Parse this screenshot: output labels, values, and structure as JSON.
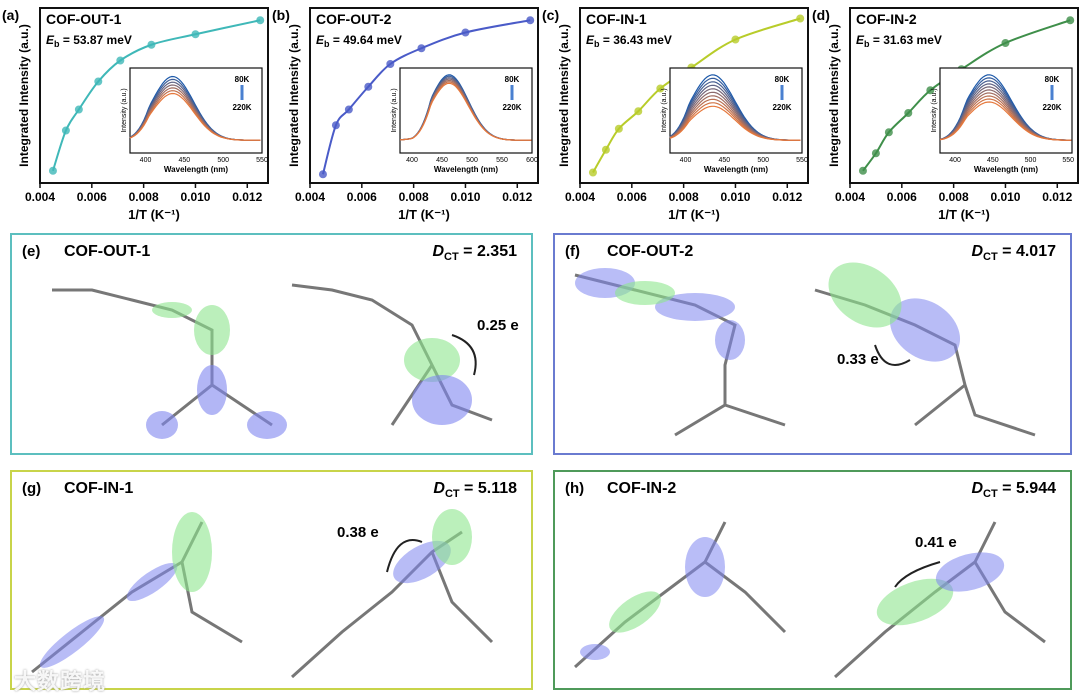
{
  "chart_data": [
    {
      "type": "line",
      "panel": "(a)",
      "title": "COF-OUT-1",
      "eb_label": "E",
      "eb_sub": "b",
      "eb_value": "= 53.87 meV",
      "color": "#3fb8b8",
      "xlabel": "1/T (K⁻¹)",
      "ylabel": "Integrated Intensity (a.u.)",
      "xlim": [
        0.004,
        0.0128
      ],
      "ylim": [
        0,
        1
      ],
      "xticks": [
        "0.004",
        "0.006",
        "0.008",
        "0.010",
        "0.012"
      ],
      "x": [
        0.0045,
        0.005,
        0.0055,
        0.00625,
        0.0071,
        0.0083,
        0.01,
        0.0125
      ],
      "y": [
        0.07,
        0.3,
        0.42,
        0.58,
        0.7,
        0.79,
        0.85,
        0.93
      ],
      "inset": {
        "xlabel": "Wavelength (nm)",
        "ylabel": "Intensity (a.u.)",
        "xticks": [
          "400",
          "450",
          "500",
          "550"
        ],
        "xlim": [
          380,
          550
        ],
        "peak": 435,
        "width": 38,
        "n": 7,
        "top": 0.9,
        "bottom": 0.7,
        "legend_top": "80K",
        "legend_bottom": "220K"
      }
    },
    {
      "type": "line",
      "panel": "(b)",
      "title": "COF-OUT-2",
      "eb_label": "E",
      "eb_sub": "b",
      "eb_value": "= 49.64 meV",
      "color": "#4a5bc8",
      "xlabel": "1/T (K⁻¹)",
      "ylabel": "Integrated Intensity (a.u.)",
      "xlim": [
        0.004,
        0.0128
      ],
      "ylim": [
        0,
        1
      ],
      "xticks": [
        "0.004",
        "0.006",
        "0.008",
        "0.010",
        "0.012"
      ],
      "x": [
        0.0045,
        0.005,
        0.0055,
        0.00625,
        0.0071,
        0.0083,
        0.01,
        0.0125
      ],
      "y": [
        0.05,
        0.33,
        0.42,
        0.55,
        0.68,
        0.77,
        0.86,
        0.93
      ],
      "inset": {
        "xlabel": "Wavelength (nm)",
        "ylabel": "Intensity (a.u.)",
        "xticks": [
          "400",
          "450",
          "500",
          "550",
          "600"
        ],
        "xlim": [
          380,
          600
        ],
        "peak": 462,
        "width": 45,
        "n": 7,
        "top": 0.92,
        "bottom": 0.82,
        "legend_top": "80K",
        "legend_bottom": "220K"
      }
    },
    {
      "type": "line",
      "panel": "(c)",
      "title": "COF-IN-1",
      "eb_label": "E",
      "eb_sub": "b",
      "eb_value": "= 36.43 meV",
      "color": "#b8cc2a",
      "xlabel": "1/T (K⁻¹)",
      "ylabel": "Integrated Intensity (a.u.)",
      "xlim": [
        0.004,
        0.0128
      ],
      "ylim": [
        0,
        1
      ],
      "xticks": [
        "0.004",
        "0.006",
        "0.008",
        "0.010",
        "0.012"
      ],
      "x": [
        0.0045,
        0.005,
        0.0055,
        0.00625,
        0.0071,
        0.0083,
        0.01,
        0.0125
      ],
      "y": [
        0.06,
        0.19,
        0.31,
        0.41,
        0.54,
        0.66,
        0.82,
        0.94
      ],
      "inset": {
        "xlabel": "Wavelength (nm)",
        "ylabel": "Intensity (a.u.)",
        "xticks": [
          "400",
          "450",
          "500",
          "550"
        ],
        "xlim": [
          380,
          550
        ],
        "peak": 435,
        "width": 40,
        "n": 10,
        "top": 0.92,
        "bottom": 0.55,
        "legend_top": "80K",
        "legend_bottom": "220K"
      }
    },
    {
      "type": "line",
      "panel": "(d)",
      "title": "COF-IN-2",
      "eb_label": "E",
      "eb_sub": "b",
      "eb_value": "= 31.63 meV",
      "color": "#3f8f4a",
      "xlabel": "1/T (K⁻¹)",
      "ylabel": "Integrated Intensity (a.u.)",
      "xlim": [
        0.004,
        0.0128
      ],
      "ylim": [
        0,
        1
      ],
      "xticks": [
        "0.004",
        "0.006",
        "0.008",
        "0.010",
        "0.012"
      ],
      "x": [
        0.0045,
        0.005,
        0.0055,
        0.00625,
        0.0071,
        0.0083,
        0.01,
        0.0125
      ],
      "y": [
        0.07,
        0.17,
        0.29,
        0.4,
        0.53,
        0.65,
        0.8,
        0.93
      ],
      "inset": {
        "xlabel": "Wavelength (nm)",
        "ylabel": "Intensity (a.u.)",
        "xticks": [
          "400",
          "450",
          "500",
          "550"
        ],
        "xlim": [
          380,
          555
        ],
        "peak": 445,
        "width": 42,
        "n": 10,
        "top": 0.92,
        "bottom": 0.6,
        "legend_top": "80K",
        "legend_bottom": "220K"
      }
    }
  ],
  "panels": {
    "e": {
      "label": "(e)",
      "title": "COF-OUT-1",
      "dct_label": "D",
      "dct_sub": "CT",
      "dct_value": " = 2.351",
      "charge": "0.25 e",
      "color": "#5cbfbf"
    },
    "f": {
      "label": "(f)",
      "title": "COF-OUT-2",
      "dct_label": "D",
      "dct_sub": "CT",
      "dct_value": " = 4.017",
      "charge": "0.33 e",
      "color": "#6a7bd0"
    },
    "g": {
      "label": "(g)",
      "title": "COF-IN-1",
      "dct_label": "D",
      "dct_sub": "CT",
      "dct_value": " = 5.118",
      "charge": "0.38 e",
      "color": "#c8d44a"
    },
    "h": {
      "label": "(h)",
      "title": "COF-IN-2",
      "dct_label": "D",
      "dct_sub": "CT",
      "dct_value": " = 5.944",
      "charge": "0.41 e",
      "color": "#4f9a5a"
    }
  },
  "watermark": "大数跨境"
}
